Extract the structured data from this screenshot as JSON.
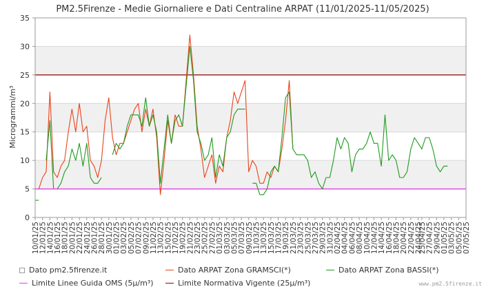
{
  "chart_data": {
    "type": "line",
    "title": "PM2.5Firenze - Medie Giornaliere e Dati Centraline ARPAT (11/01/2025-11/05/2025)",
    "ylabel": "Microgrammi/m³",
    "ylim": [
      0,
      35
    ],
    "yticks": [
      0,
      5,
      10,
      15,
      20,
      25,
      30,
      35
    ],
    "x_start": "2025-01-10",
    "x_end": "2025-05-07",
    "xticks": [
      "10/01/25",
      "12/01/25",
      "14/01/25",
      "16/01/25",
      "18/01/25",
      "20/01/25",
      "22/01/25",
      "24/01/25",
      "26/01/25",
      "28/01/25",
      "30/01/25",
      "01/02/25",
      "03/02/25",
      "05/02/25",
      "07/02/25",
      "09/02/25",
      "11/02/25",
      "13/02/25",
      "15/02/25",
      "17/02/25",
      "19/02/25",
      "21/02/25",
      "23/02/25",
      "25/02/25",
      "27/02/25",
      "01/03/25",
      "03/03/25",
      "05/03/25",
      "07/03/25",
      "09/03/25",
      "11/03/25",
      "13/03/25",
      "15/03/25",
      "17/03/25",
      "19/03/25",
      "21/03/25",
      "23/03/25",
      "25/03/25",
      "27/03/25",
      "29/03/25",
      "31/03/25",
      "02/04/25",
      "04/04/25",
      "06/04/25",
      "08/04/25",
      "10/04/25",
      "12/04/25",
      "14/04/25",
      "16/04/25",
      "18/04/25",
      "20/04/25",
      "22/04/25",
      "24/04/25",
      "25/04/25",
      "27/04/25",
      "29/04/25",
      "01/05/25",
      "03/05/25",
      "05/05/25",
      "07/05/25"
    ],
    "grid": "horizontal bands",
    "legend_position": "bottom",
    "series": [
      {
        "name": "Dato pm2.5firenze.it",
        "color": "#999999",
        "style": "box",
        "points": []
      },
      {
        "name": "Dato ARPAT Zona GRAMSCI(*)",
        "color": "#e8431a",
        "points": [
          [
            "2025-01-11",
            5
          ],
          [
            "2025-01-12",
            7
          ],
          [
            "2025-01-13",
            8
          ],
          [
            "2025-01-14",
            22
          ],
          [
            "2025-01-15",
            8
          ],
          [
            "2025-01-16",
            7
          ],
          [
            "2025-01-17",
            9
          ],
          [
            "2025-01-18",
            10
          ],
          [
            "2025-01-19",
            15
          ],
          [
            "2025-01-20",
            19
          ],
          [
            "2025-01-21",
            15
          ],
          [
            "2025-01-22",
            20
          ],
          [
            "2025-01-23",
            15
          ],
          [
            "2025-01-24",
            16
          ],
          [
            "2025-01-25",
            10
          ],
          [
            "2025-01-26",
            9
          ],
          [
            "2025-01-27",
            7
          ],
          [
            "2025-01-28",
            10
          ],
          [
            "2025-01-29",
            17
          ],
          [
            "2025-01-30",
            21
          ],
          [
            "2025-01-31",
            14
          ],
          [
            "2025-02-01",
            11
          ],
          [
            "2025-02-02",
            13
          ],
          [
            "2025-02-03",
            13
          ],
          [
            "2025-02-04",
            15
          ],
          [
            "2025-02-05",
            17
          ],
          [
            "2025-02-06",
            19
          ],
          [
            "2025-02-07",
            20
          ],
          [
            "2025-02-08",
            15
          ],
          [
            "2025-02-09",
            19
          ],
          [
            "2025-02-10",
            16
          ],
          [
            "2025-02-11",
            19
          ],
          [
            "2025-02-12",
            14
          ],
          [
            "2025-02-13",
            4
          ],
          [
            "2025-02-14",
            10
          ],
          [
            "2025-02-15",
            17
          ],
          [
            "2025-02-16",
            13
          ],
          [
            "2025-02-17",
            18
          ],
          [
            "2025-02-18",
            16
          ],
          [
            "2025-02-19",
            16
          ],
          [
            "2025-02-20",
            24
          ],
          [
            "2025-02-21",
            32
          ],
          [
            "2025-02-22",
            25
          ],
          [
            "2025-02-23",
            16
          ],
          [
            "2025-02-24",
            12
          ],
          [
            "2025-02-25",
            7
          ],
          [
            "2025-02-26",
            9
          ],
          [
            "2025-02-27",
            11
          ],
          [
            "2025-02-28",
            6
          ],
          [
            "2025-03-01",
            9
          ],
          [
            "2025-03-02",
            8
          ],
          [
            "2025-03-03",
            14
          ],
          [
            "2025-03-04",
            17
          ],
          [
            "2025-03-05",
            22
          ],
          [
            "2025-03-06",
            20
          ],
          [
            "2025-03-07",
            22
          ],
          [
            "2025-03-08",
            24
          ],
          [
            "2025-03-09",
            8
          ],
          [
            "2025-03-10",
            10
          ],
          [
            "2025-03-11",
            9
          ],
          [
            "2025-03-12",
            6
          ],
          [
            "2025-03-13",
            6
          ],
          [
            "2025-03-14",
            8
          ],
          [
            "2025-03-15",
            7
          ],
          [
            "2025-03-16",
            9
          ],
          [
            "2025-03-17",
            8
          ],
          [
            "2025-03-18",
            12
          ],
          [
            "2025-03-19",
            17
          ],
          [
            "2025-03-20",
            24
          ],
          [
            "2025-03-21",
            12
          ]
        ]
      },
      {
        "name": "Dato ARPAT Zona BASSI(*)",
        "color": "#1e9a1e",
        "points": [
          [
            "2025-01-10",
            3
          ],
          [
            "2025-01-11",
            3
          ],
          null,
          [
            "2025-01-13",
            10
          ],
          [
            "2025-01-14",
            17
          ],
          [
            "2025-01-15",
            5
          ],
          null,
          [
            "2025-01-16",
            5
          ],
          [
            "2025-01-17",
            6
          ],
          [
            "2025-01-18",
            8
          ],
          [
            "2025-01-19",
            9
          ],
          [
            "2025-01-20",
            12
          ],
          [
            "2025-01-21",
            10
          ],
          [
            "2025-01-22",
            13
          ],
          [
            "2025-01-23",
            9
          ],
          [
            "2025-01-24",
            13
          ],
          [
            "2025-01-25",
            7
          ],
          [
            "2025-01-26",
            6
          ],
          [
            "2025-01-27",
            6
          ],
          [
            "2025-01-28",
            7
          ],
          null,
          [
            "2025-01-31",
            11
          ],
          [
            "2025-02-01",
            13
          ],
          [
            "2025-02-02",
            12
          ],
          [
            "2025-02-03",
            13
          ],
          [
            "2025-02-04",
            16
          ],
          [
            "2025-02-05",
            18
          ],
          [
            "2025-02-06",
            18
          ],
          [
            "2025-02-07",
            18
          ],
          [
            "2025-02-08",
            16
          ],
          [
            "2025-02-09",
            21
          ],
          [
            "2025-02-10",
            16
          ],
          [
            "2025-02-11",
            18
          ],
          [
            "2025-02-12",
            15
          ],
          [
            "2025-02-13",
            6
          ],
          [
            "2025-02-14",
            12
          ],
          [
            "2025-02-15",
            18
          ],
          [
            "2025-02-16",
            13
          ],
          [
            "2025-02-17",
            17
          ],
          [
            "2025-02-18",
            18
          ],
          [
            "2025-02-19",
            16
          ],
          [
            "2025-02-20",
            23
          ],
          [
            "2025-02-21",
            30
          ],
          [
            "2025-02-22",
            24
          ],
          [
            "2025-02-23",
            15
          ],
          [
            "2025-02-24",
            13
          ],
          [
            "2025-02-25",
            10
          ],
          [
            "2025-02-26",
            11
          ],
          [
            "2025-02-27",
            14
          ],
          [
            "2025-02-28",
            7
          ],
          [
            "2025-03-01",
            11
          ],
          [
            "2025-03-02",
            9
          ],
          [
            "2025-03-03",
            14
          ],
          [
            "2025-03-04",
            15
          ],
          [
            "2025-03-05",
            18
          ],
          [
            "2025-03-06",
            19
          ],
          [
            "2025-03-07",
            19
          ],
          [
            "2025-03-08",
            19
          ],
          null,
          [
            "2025-03-10",
            6
          ],
          [
            "2025-03-11",
            6
          ],
          [
            "2025-03-12",
            4
          ],
          [
            "2025-03-13",
            4
          ],
          [
            "2025-03-14",
            5
          ],
          [
            "2025-03-15",
            8
          ],
          [
            "2025-03-16",
            9
          ],
          [
            "2025-03-17",
            8
          ],
          [
            "2025-03-18",
            14
          ],
          [
            "2025-03-19",
            21
          ],
          [
            "2025-03-20",
            22
          ],
          [
            "2025-03-21",
            12
          ],
          [
            "2025-03-22",
            11
          ],
          [
            "2025-03-23",
            11
          ],
          [
            "2025-03-24",
            11
          ],
          [
            "2025-03-25",
            10
          ],
          [
            "2025-03-26",
            7
          ],
          [
            "2025-03-27",
            8
          ],
          [
            "2025-03-28",
            6
          ],
          [
            "2025-03-29",
            5
          ],
          [
            "2025-03-30",
            7
          ],
          [
            "2025-03-31",
            7
          ],
          [
            "2025-04-01",
            10
          ],
          [
            "2025-04-02",
            14
          ],
          [
            "2025-04-03",
            12
          ],
          [
            "2025-04-04",
            14
          ],
          [
            "2025-04-05",
            13
          ],
          [
            "2025-04-06",
            8
          ],
          [
            "2025-04-07",
            11
          ],
          [
            "2025-04-08",
            12
          ],
          [
            "2025-04-09",
            12
          ],
          [
            "2025-04-10",
            13
          ],
          [
            "2025-04-11",
            15
          ],
          [
            "2025-04-12",
            13
          ],
          [
            "2025-04-13",
            13
          ],
          [
            "2025-04-14",
            9
          ],
          [
            "2025-04-15",
            18
          ],
          [
            "2025-04-16",
            10
          ],
          [
            "2025-04-17",
            11
          ],
          [
            "2025-04-18",
            10
          ],
          [
            "2025-04-19",
            7
          ],
          [
            "2025-04-20",
            7
          ],
          [
            "2025-04-21",
            8
          ],
          [
            "2025-04-22",
            12
          ],
          [
            "2025-04-23",
            14
          ],
          [
            "2025-04-24",
            13
          ],
          [
            "2025-04-25",
            12
          ],
          [
            "2025-04-26",
            14
          ],
          [
            "2025-04-27",
            14
          ],
          [
            "2025-04-28",
            12
          ],
          [
            "2025-04-29",
            9
          ],
          [
            "2025-04-30",
            8
          ],
          [
            "2025-05-01",
            9
          ],
          [
            "2025-05-02",
            9
          ]
        ]
      }
    ],
    "reference_lines": [
      {
        "name": "Limite Linee Guida OMS (5µ/m³)",
        "value": 5,
        "color": "#e040e0"
      },
      {
        "name": "Limite Normativa Vigente (25µ/m³)",
        "value": 25,
        "color": "#8b0000"
      }
    ],
    "watermark": "www.pm2.5firenze.it"
  }
}
